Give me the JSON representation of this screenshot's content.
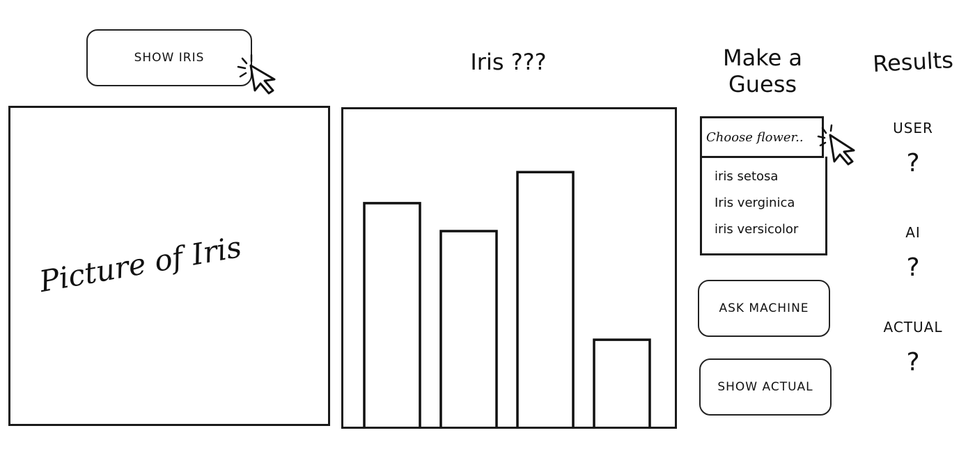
{
  "controls": {
    "show_iris_label": "SHOW IRIS",
    "ask_machine_label": "ASK MACHINE",
    "show_actual_label": "SHOW ACTUAL"
  },
  "picture_panel": {
    "text": "Picture of Iris"
  },
  "chart_title": "Iris ???",
  "guess": {
    "heading_line1": "Make a",
    "heading_line2": "Guess",
    "select_value": "Choose flower..",
    "options": [
      "iris setosa",
      "Iris verginica",
      "iris versicolor"
    ]
  },
  "results": {
    "heading": "Results",
    "user_label": "USER",
    "user_value": "?",
    "ai_label": "AI",
    "ai_value": "?",
    "actual_label": "ACTUAL",
    "actual_value": "?"
  },
  "chart_data": {
    "type": "bar",
    "title": "Iris ???",
    "categories": [
      "",
      "",
      "",
      ""
    ],
    "values": [
      72,
      63,
      82,
      28
    ],
    "ylim": [
      0,
      100
    ]
  }
}
